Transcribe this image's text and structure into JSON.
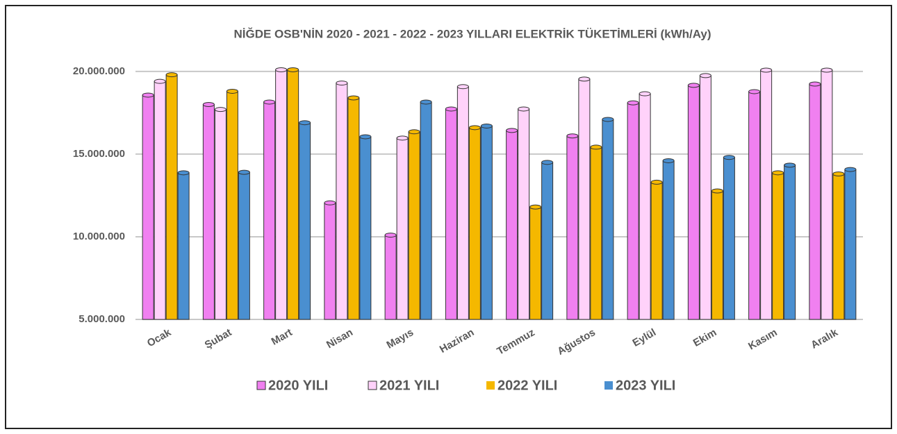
{
  "chart_data": {
    "type": "bar",
    "title": "NİĞDE OSB'NİN  2020 - 2021 - 2022 - 2023 YILLARI ELEKTRİK TÜKETİMLERİ (kWh/Ay)",
    "categories": [
      "Ocak",
      "Şubat",
      "Mart",
      "Nisan",
      "Mayıs",
      "Haziran",
      "Temmuz",
      "Ağustos",
      "Eylül",
      "Ekim",
      "Kasım",
      "Aralık"
    ],
    "series": [
      {
        "name": "2020 YILI",
        "color": "#f080f0",
        "values": [
          18570000,
          18000000,
          18150000,
          12050000,
          10100000,
          17730000,
          16430000,
          16100000,
          18100000,
          19160000,
          18780000,
          19240000
        ]
      },
      {
        "name": "2021 YILI",
        "color": "#ffd2fa",
        "values": [
          19400000,
          17700000,
          20100000,
          19300000,
          15970000,
          19080000,
          17730000,
          19540000,
          18650000,
          19750000,
          20080000,
          20080000
        ]
      },
      {
        "name": "2022 YILI",
        "color": "#f5b800",
        "values": [
          19800000,
          18800000,
          20100000,
          18400000,
          16350000,
          16600000,
          11800000,
          15420000,
          13300000,
          12770000,
          13870000,
          13800000
        ]
      },
      {
        "name": "2023 YILI",
        "color": "#4a8fd0",
        "values": [
          13870000,
          13900000,
          16900000,
          16050000,
          18150000,
          16700000,
          14500000,
          17100000,
          14600000,
          14800000,
          14330000,
          14070000
        ]
      }
    ],
    "ylim": [
      5000000,
      20500000
    ],
    "yticks": [
      {
        "value": 5000000,
        "label": "5.000.000"
      },
      {
        "value": 10000000,
        "label": "10.000.000"
      },
      {
        "value": 15000000,
        "label": "15.000.000"
      },
      {
        "value": 20000000,
        "label": "20.000.000"
      }
    ],
    "grid": true
  }
}
